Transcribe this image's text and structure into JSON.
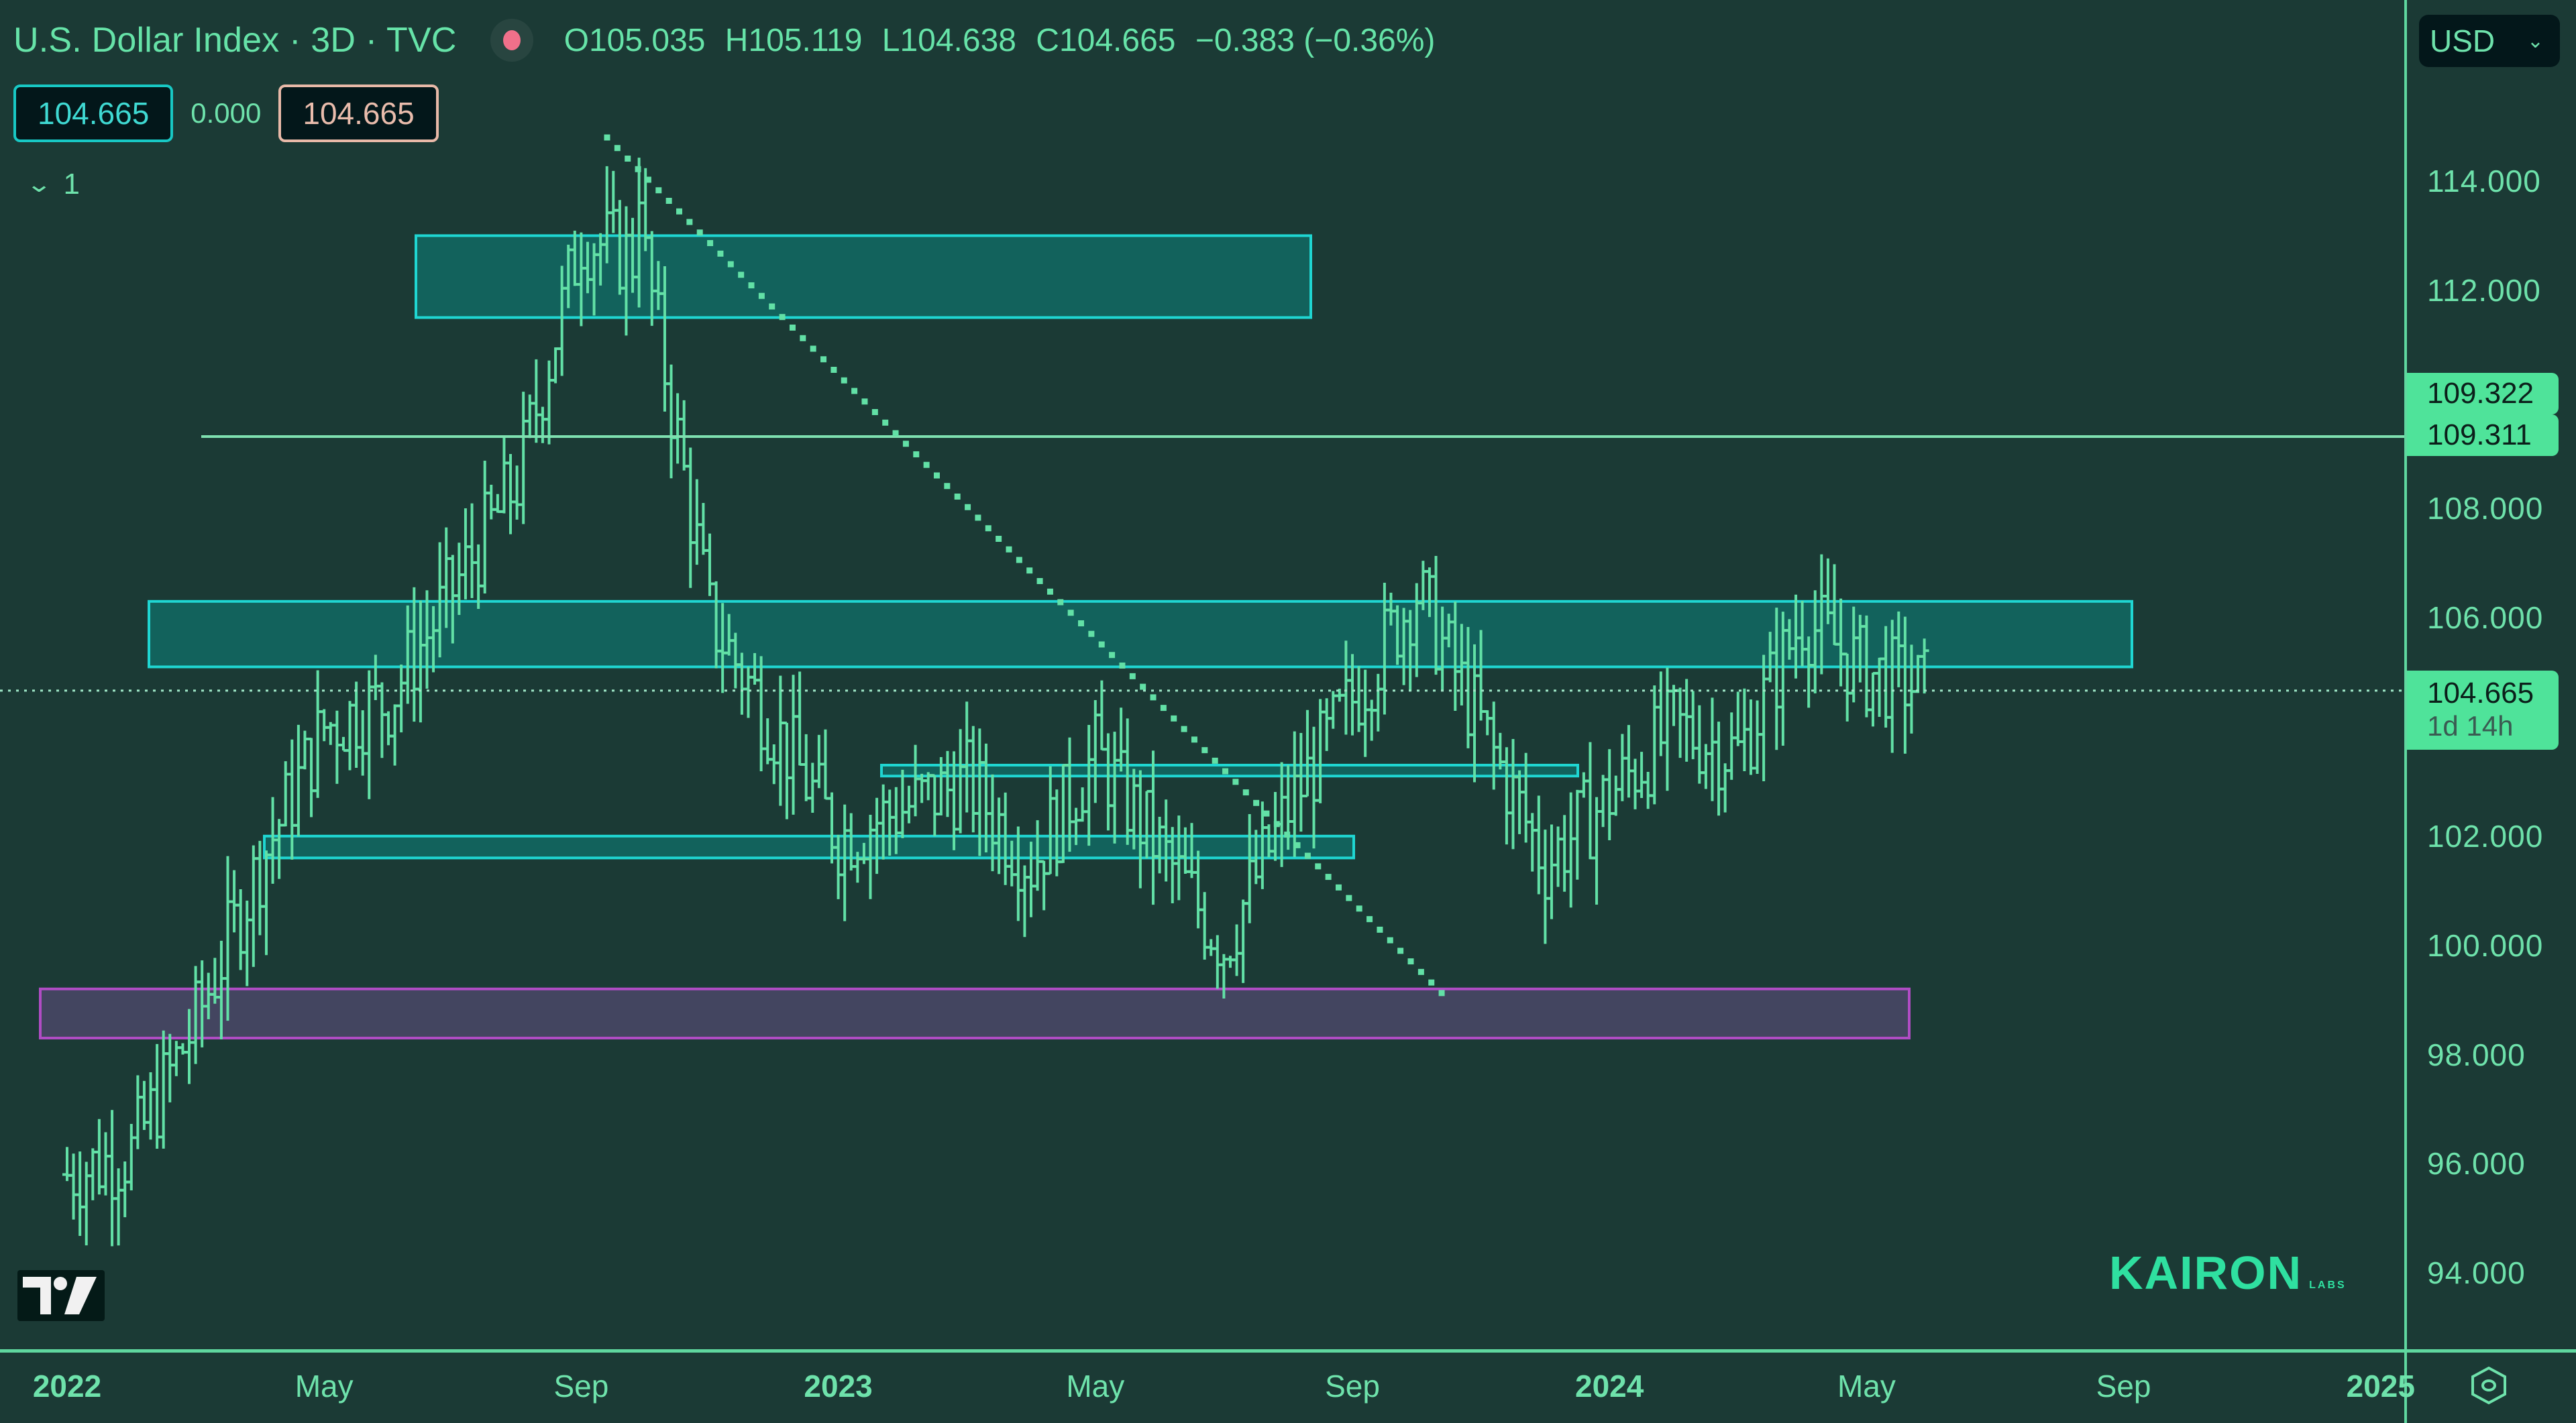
{
  "header": {
    "title": "U.S. Dollar Index · 3D · TVC",
    "status_dot_color": "#f0708a",
    "ohlc": {
      "open": "O105.035",
      "high": "H105.119",
      "low": "L104.638",
      "close": "C104.665",
      "change": "−0.383 (−0.36%)"
    },
    "bid": "104.665",
    "spread": "0.000",
    "ask": "104.665",
    "indicators_collapsed_count": "1"
  },
  "currency_selector": {
    "value": "USD"
  },
  "price_axis": {
    "ticks": [
      "114.000",
      "112.000",
      "108.000",
      "106.000",
      "102.000",
      "100.000",
      "98.000",
      "96.000",
      "94.000"
    ],
    "labels": {
      "line_a": "109.322",
      "line_b": "109.311",
      "last_price": "104.665",
      "countdown": "1d 14h"
    }
  },
  "time_axis": {
    "ticks": [
      {
        "label": "2022",
        "year": true
      },
      {
        "label": "May",
        "year": false
      },
      {
        "label": "Sep",
        "year": false
      },
      {
        "label": "2023",
        "year": true
      },
      {
        "label": "May",
        "year": false
      },
      {
        "label": "Sep",
        "year": false
      },
      {
        "label": "2024",
        "year": true
      },
      {
        "label": "May",
        "year": false
      },
      {
        "label": "Sep",
        "year": false
      },
      {
        "label": "2025",
        "year": true
      }
    ]
  },
  "watermark": {
    "brand": "KAIRON",
    "sub": "LABS"
  },
  "colors": {
    "background": "#1b3a35",
    "bars": "#62e0a6",
    "zone_fill": "#12625c",
    "zone_border": "#1fd6d2",
    "support_fill": "#434560",
    "support_border": "#b04cc4",
    "axis": "#5fd79f",
    "label_bg": "#4fe39a"
  },
  "chart_data": {
    "type": "ohlc-bar",
    "title": "U.S. Dollar Index · 3D · TVC",
    "timeframe": "3D",
    "xlabel": "",
    "ylabel": "USD",
    "ylim": [
      93,
      116
    ],
    "x_range": [
      "2022-01",
      "2025-01"
    ],
    "grid": false,
    "last": {
      "open": 105.035,
      "high": 105.119,
      "low": 104.638,
      "close": 104.665,
      "change": -0.383,
      "change_pct": -0.36
    },
    "approx_path": [
      {
        "date": "2022-01",
        "price": 95.8
      },
      {
        "date": "2022-02",
        "price": 96.2
      },
      {
        "date": "2022-03",
        "price": 98.6
      },
      {
        "date": "2022-04",
        "price": 101.5
      },
      {
        "date": "2022-05",
        "price": 104.0
      },
      {
        "date": "2022-06",
        "price": 104.5
      },
      {
        "date": "2022-07",
        "price": 106.5
      },
      {
        "date": "2022-08",
        "price": 108.5
      },
      {
        "date": "2022-09",
        "price": 113.0
      },
      {
        "date": "2022-10",
        "price": 112.5
      },
      {
        "date": "2022-11",
        "price": 106.0
      },
      {
        "date": "2022-12",
        "price": 104.0
      },
      {
        "date": "2023-01",
        "price": 102.0
      },
      {
        "date": "2023-03",
        "price": 103.0
      },
      {
        "date": "2023-04",
        "price": 101.5
      },
      {
        "date": "2023-05",
        "price": 103.5
      },
      {
        "date": "2023-07",
        "price": 100.0
      },
      {
        "date": "2023-08",
        "price": 102.5
      },
      {
        "date": "2023-10",
        "price": 106.5
      },
      {
        "date": "2023-11",
        "price": 104.0
      },
      {
        "date": "2023-12",
        "price": 101.5
      },
      {
        "date": "2024-02",
        "price": 104.0
      },
      {
        "date": "2024-03",
        "price": 103.5
      },
      {
        "date": "2024-04",
        "price": 106.0
      },
      {
        "date": "2024-05",
        "price": 105.0
      },
      {
        "date": "2024-06",
        "price": 104.665
      }
    ],
    "extremes": {
      "high": 114.8,
      "high_date": "2022-09-27",
      "low": 94.6,
      "low_date": "2022-01"
    },
    "annotations": [
      {
        "type": "zone",
        "label": "resistance zone top",
        "y_top": 113.0,
        "y_bottom": 111.5,
        "x_start": "2022-06",
        "x_end": "2023-09",
        "color": "#1fd6d2"
      },
      {
        "type": "zone",
        "label": "main zone",
        "y_top": 106.3,
        "y_bottom": 105.1,
        "x_start": "2022-01",
        "x_end": "2024-09",
        "color": "#1fd6d2"
      },
      {
        "type": "zone",
        "label": "thin zone",
        "y_top": 103.3,
        "y_bottom": 103.1,
        "x_start": "2023-03",
        "x_end": "2023-12",
        "color": "#1fd6d2"
      },
      {
        "type": "zone",
        "label": "lower zone",
        "y_top": 102.0,
        "y_bottom": 101.6,
        "x_start": "2022-04",
        "x_end": "2023-09",
        "color": "#1fd6d2"
      },
      {
        "type": "zone",
        "label": "support zone",
        "y_top": 99.2,
        "y_bottom": 98.3,
        "x_start": "2022-01",
        "x_end": "2024-07",
        "color": "#b04cc4"
      },
      {
        "type": "hline",
        "label": "level",
        "y": 109.32,
        "x_start": "2022-02"
      },
      {
        "type": "hline",
        "label": "last price",
        "y": 104.665,
        "style": "dotted"
      },
      {
        "type": "trendline",
        "style": "dotted",
        "from": {
          "date": "2022-09-27",
          "price": 114.8
        },
        "to": {
          "date": "2023-11",
          "price": 99.0
        }
      }
    ]
  }
}
